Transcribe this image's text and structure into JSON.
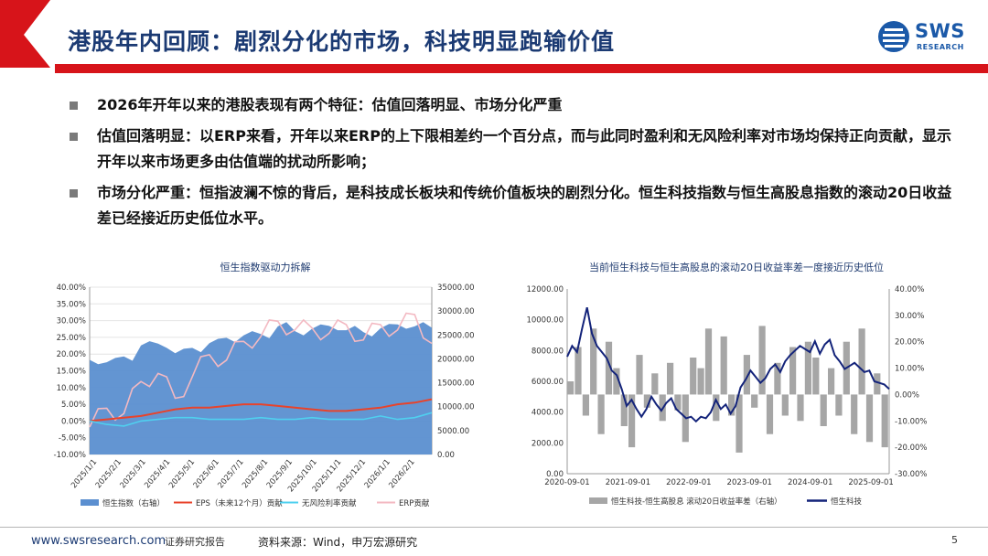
{
  "header": {
    "title": "港股年内回顾：剧烈分化的市场，科技明显跑输价值",
    "logo_word": "SWS",
    "logo_sub": "RESEARCH"
  },
  "bullets": [
    "2026年开年以来的港股表现有两个特征：估值回落明显、市场分化严重",
    "估值回落明显：以ERP来看，开年以来ERP的上下限相差约一个百分点，而与此同时盈利和无风险利率对市场均保持正向贡献，显示开年以来市场更多由估值端的扰动所影响；",
    "市场分化严重：恒指波澜不惊的背后，是科技成长板块和传统价值板块的剧烈分化。恒生科技指数与恒生高股息指数的滚动20日收益差已经接近历史低位水平。"
  ],
  "colors": {
    "brand_blue": "#1b3a73",
    "accent_red": "#d7141a",
    "hsi_fill": "#5b8fd0",
    "eps": "#e8432b",
    "rf": "#4fd0ef",
    "erp": "#f3b9c2",
    "hstech": "#13237a",
    "spread": "#a6a6a6"
  },
  "chart_data": [
    {
      "type": "area",
      "title": "恒生指数驱动力拆解",
      "x_ticks": [
        "2025/1/1",
        "2025/2/1",
        "2025/3/1",
        "2025/4/1",
        "2025/5/1",
        "2025/6/1",
        "2025/7/1",
        "2025/8/1",
        "2025/9/1",
        "2025/10/1",
        "2025/11/1",
        "2025/12/1",
        "2026/1/1",
        "2026/2/1"
      ],
      "y_left_ticks": [
        "40.00%",
        "35.00%",
        "30.00%",
        "25.00%",
        "20.00%",
        "15.00%",
        "10.00%",
        "5.00%",
        "0.00%",
        "-5.00%",
        "-10.00%"
      ],
      "y_right_ticks": [
        "35000.00",
        "30000.00",
        "25000.00",
        "20000.00",
        "15000.00",
        "10000.00",
        "5000.00",
        "0.00"
      ],
      "ylim_left": [
        -10,
        40
      ],
      "ylim_right": [
        0,
        35000
      ],
      "series": [
        {
          "name": "恒生指数（右轴）",
          "axis": "right",
          "values": [
            19800,
            19300,
            20500,
            22800,
            23200,
            21200,
            22300,
            23300,
            24400,
            24900,
            25200,
            26800,
            25800,
            26300,
            26900,
            26000,
            25600,
            26400,
            27200,
            26800,
            26500
          ]
        },
        {
          "name": "EPS（未来12个月）贡献",
          "axis": "left",
          "values": [
            0.0,
            0.5,
            1.0,
            1.5,
            2.5,
            3.5,
            4.0,
            4.0,
            4.5,
            5.0,
            5.0,
            4.5,
            4.0,
            3.5,
            3.0,
            3.0,
            3.5,
            4.0,
            5.0,
            5.5,
            6.5
          ]
        },
        {
          "name": "无风险利率贡献",
          "axis": "left",
          "values": [
            0.0,
            -1.0,
            -1.5,
            0.0,
            0.5,
            1.0,
            1.0,
            0.5,
            0.5,
            0.5,
            1.0,
            0.5,
            0.5,
            1.0,
            0.5,
            0.5,
            0.5,
            1.5,
            0.5,
            1.0,
            2.5
          ]
        },
        {
          "name": "ERP贡献",
          "axis": "left",
          "values": [
            0.0,
            2.0,
            4.0,
            10.0,
            16.0,
            5.0,
            15.0,
            18.0,
            20.0,
            22.0,
            27.0,
            28.0,
            29.0,
            26.0,
            28.0,
            27.0,
            26.0,
            27.0,
            29.0,
            30.0,
            25.0
          ]
        }
      ]
    },
    {
      "type": "line",
      "title": "当前恒生科技与恒生高股息的滚动20日收益率差一度接近历史低位",
      "x_ticks": [
        "2020-09-01",
        "2021-09-01",
        "2022-09-01",
        "2023-09-01",
        "2024-09-01",
        "2025-09-01"
      ],
      "y_left_ticks": [
        "12000.00",
        "10000.00",
        "8000.00",
        "6000.00",
        "4000.00",
        "2000.00",
        "0.00"
      ],
      "y_right_ticks": [
        "40.00%",
        "30.00%",
        "20.00%",
        "10.00%",
        "0.00%",
        "-10.00%",
        "-20.00%",
        "-30.00%"
      ],
      "ylim_left": [
        0,
        12000
      ],
      "ylim_right": [
        -30,
        40
      ],
      "series": [
        {
          "name": "恒生科技-恒生高股息 滚动20日收益率差（右轴）",
          "axis": "right",
          "values": [
            5,
            18,
            -8,
            25,
            -15,
            20,
            10,
            -12,
            -20,
            15,
            -5,
            8,
            -10,
            12,
            -6,
            -18,
            14,
            10,
            25,
            -10,
            22,
            -8,
            -22,
            15,
            -5,
            26,
            -15,
            12,
            -8,
            18,
            -10,
            20,
            14,
            -12,
            10,
            -8,
            20,
            -15,
            25,
            -18,
            8,
            -20
          ]
        },
        {
          "name": "恒生科技",
          "axis": "left",
          "values": [
            7600,
            8300,
            7900,
            9400,
            10800,
            9100,
            8300,
            7900,
            7500,
            6700,
            6400,
            5500,
            4400,
            4800,
            4200,
            3700,
            4200,
            5000,
            4500,
            4100,
            4600,
            4900,
            4200,
            3900,
            3600,
            3700,
            3400,
            3700,
            3600,
            4000,
            4800,
            4200,
            4500,
            3900,
            4400,
            5600,
            6100,
            6700,
            6300,
            5900,
            6200,
            6800,
            7100,
            6600,
            7300,
            7700,
            8000,
            8300,
            8100,
            7900,
            8600,
            7800,
            8400,
            8700,
            7700,
            7300,
            6800,
            7000,
            7200,
            6900,
            6600,
            6700,
            6000,
            5900,
            5800,
            5500
          ]
        }
      ]
    }
  ],
  "footer": {
    "url": "www.swsresearch.com",
    "report": "证券研究报告",
    "source": "资料来源：Wind，申万宏源研究",
    "page": "5"
  }
}
